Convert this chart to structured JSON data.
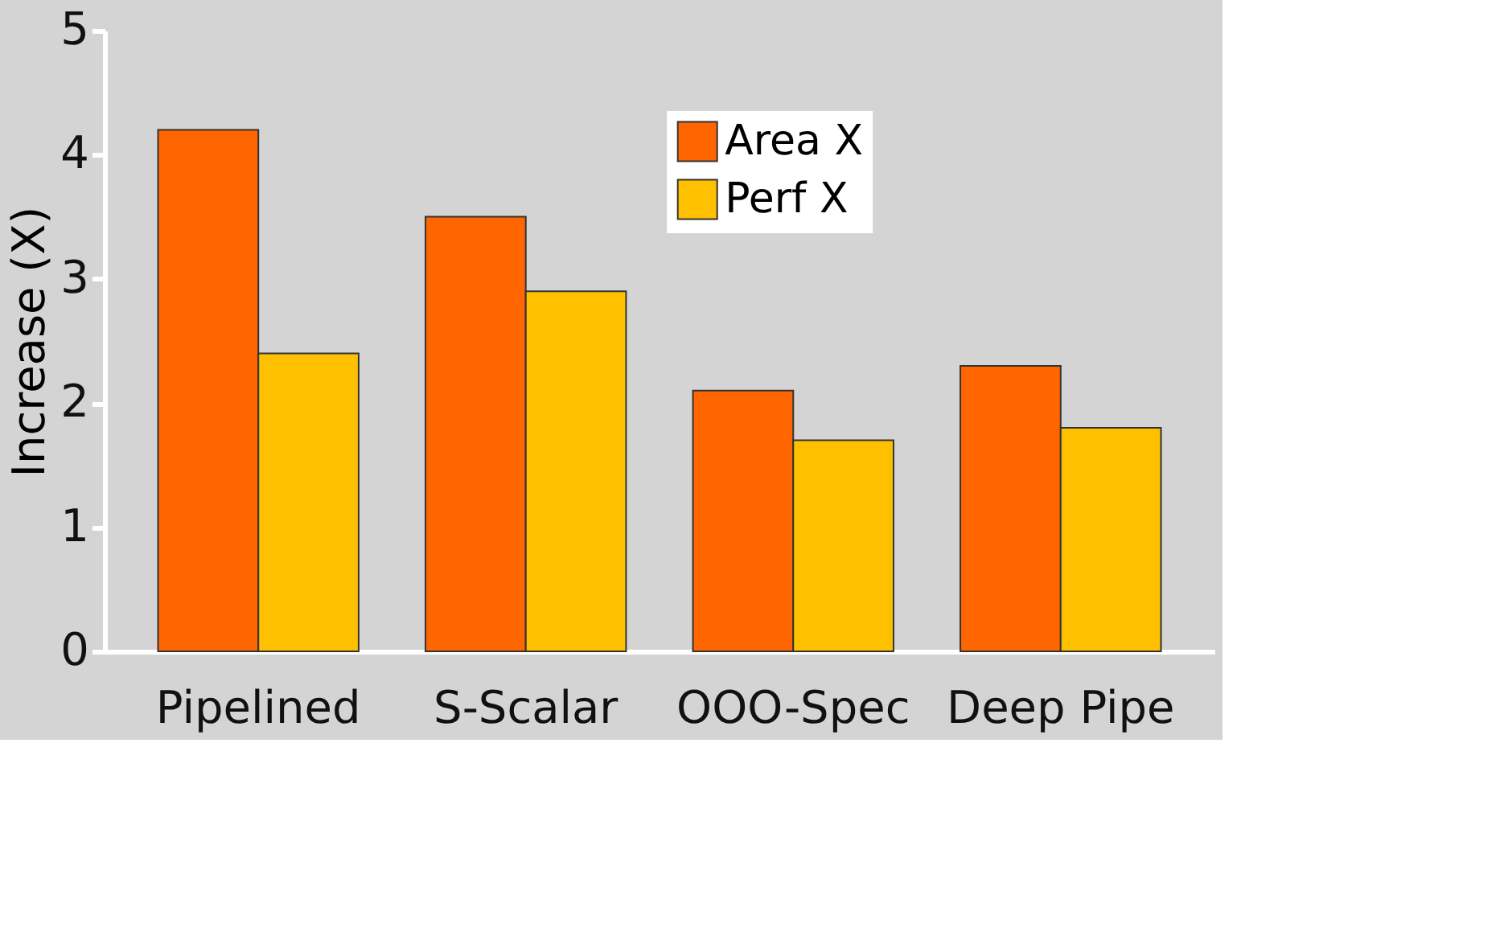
{
  "chart_data": {
    "type": "bar",
    "ylabel": "Increase (X)",
    "categories": [
      "Pipelined",
      "S-Scalar",
      "OOO-Spec",
      "Deep Pipe"
    ],
    "series": [
      {
        "name": "Area X",
        "color": "#ff6600",
        "values": [
          4.2,
          3.5,
          2.1,
          2.3
        ]
      },
      {
        "name": "Perf X",
        "color": "#ffc000",
        "values": [
          2.4,
          2.9,
          1.7,
          1.8
        ]
      }
    ],
    "ylim": [
      0,
      5
    ],
    "yticks": [
      0,
      1,
      2,
      3,
      4,
      5
    ],
    "grid": false,
    "legend": "top"
  }
}
